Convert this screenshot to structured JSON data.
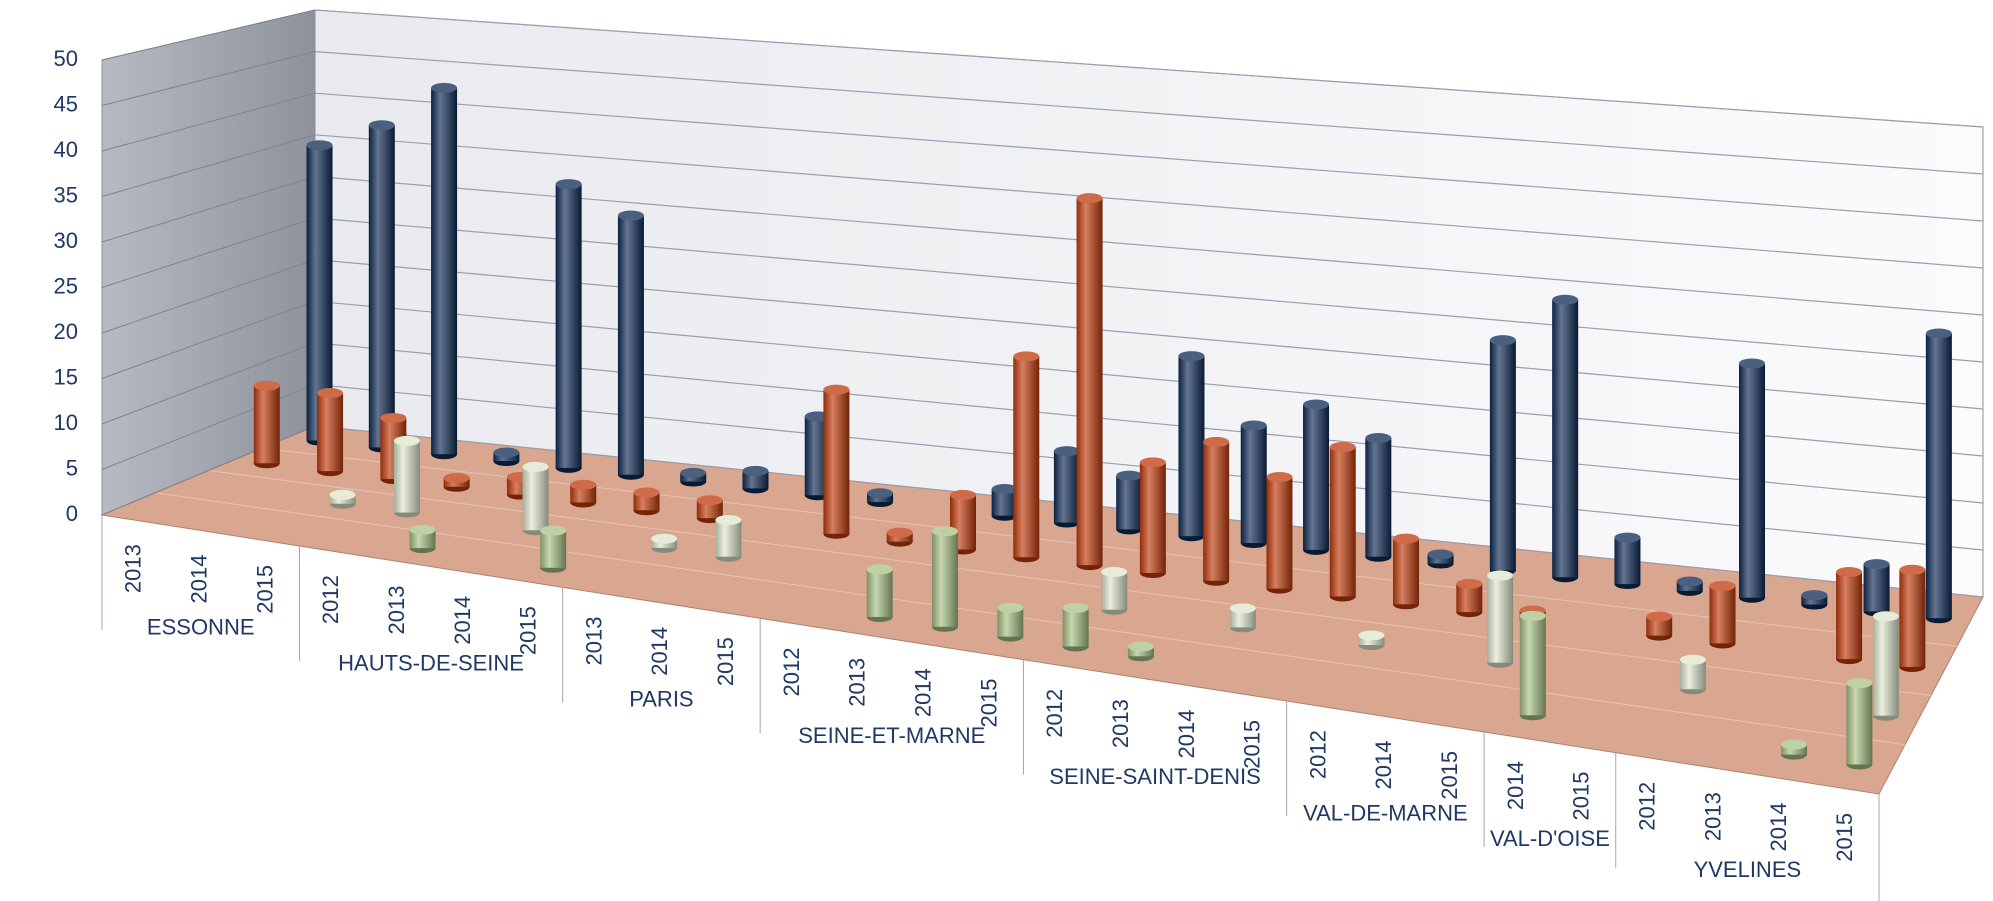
{
  "chart_data": {
    "type": "bar3d",
    "groups": [
      {
        "name": "ESSONNE",
        "categories": [
          "2013",
          "2014",
          "2015"
        ]
      },
      {
        "name": "HAUTS-DE-SEINE",
        "categories": [
          "2012",
          "2013",
          "2014",
          "2015"
        ]
      },
      {
        "name": "PARIS",
        "categories": [
          "2013",
          "2014",
          "2015"
        ]
      },
      {
        "name": "SEINE-ET-MARNE",
        "categories": [
          "2012",
          "2013",
          "2014",
          "2015"
        ]
      },
      {
        "name": "SEINE-SAINT-DENIS",
        "categories": [
          "2012",
          "2013",
          "2014",
          "2015"
        ]
      },
      {
        "name": "VAL-DE-MARNE",
        "categories": [
          "2012",
          "2014",
          "2015"
        ]
      },
      {
        "name": "VAL-D'OISE",
        "categories": [
          "2014",
          "2015"
        ]
      },
      {
        "name": "YVELINES",
        "categories": [
          "2012",
          "2013",
          "2014",
          "2015"
        ]
      }
    ],
    "series": [
      {
        "color": "#0f2b55",
        "values": [
          35,
          38,
          43,
          1,
          33,
          30,
          1,
          2,
          9,
          1,
          null,
          3,
          8,
          6,
          20,
          13,
          16,
          13,
          1,
          25,
          30,
          5,
          1,
          25,
          1,
          5,
          30
        ]
      },
      {
        "color": "#c03a0c",
        "values": [
          9,
          9,
          7,
          1,
          2,
          2,
          2,
          2,
          null,
          16,
          1,
          6,
          22,
          40,
          12,
          15,
          12,
          16,
          7,
          3,
          1,
          null,
          2,
          6,
          null,
          9,
          10
        ]
      },
      {
        "color": "#dfe6cc",
        "values": [
          null,
          null,
          1,
          8,
          null,
          7,
          null,
          1,
          4,
          null,
          null,
          null,
          null,
          null,
          4,
          null,
          2,
          null,
          1,
          null,
          9,
          null,
          null,
          3,
          null,
          null,
          10
        ]
      },
      {
        "color": "#a9c185",
        "values": [
          null,
          null,
          null,
          null,
          2,
          null,
          4,
          null,
          null,
          null,
          null,
          5,
          10,
          3,
          4,
          1,
          null,
          null,
          null,
          null,
          null,
          10,
          null,
          null,
          null,
          1,
          8
        ]
      }
    ],
    "ylim": [
      0,
      50
    ],
    "yticks": [
      0,
      5,
      10,
      15,
      20,
      25,
      30,
      35,
      40,
      45,
      50
    ],
    "grid": true
  }
}
